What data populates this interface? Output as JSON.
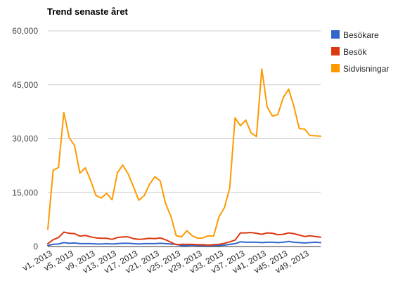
{
  "chart_data": {
    "type": "line",
    "title": "Trend senaste året",
    "xlabel": "",
    "ylabel": "",
    "ylim": [
      0,
      60000
    ],
    "yticks": [
      "0",
      "15,000",
      "30,000",
      "45,000",
      "60,000"
    ],
    "ytick_values": [
      0,
      15000,
      30000,
      45000,
      60000
    ],
    "grid": true,
    "legend_position": "right",
    "xtick_labels": [
      "v1, 2013",
      "v5, 2013",
      "v9, 2013",
      "v13, 2013",
      "v17, 2013",
      "v21, 2013",
      "v25, 2013",
      "v29, 2013",
      "v33, 2013",
      "v37, 2013",
      "v41, 2013",
      "v45, 2013",
      "v49, 2013"
    ],
    "xtick_weeks": [
      1,
      5,
      9,
      13,
      17,
      21,
      25,
      29,
      33,
      37,
      41,
      45,
      49
    ],
    "x": [
      1,
      2,
      3,
      4,
      5,
      6,
      7,
      8,
      9,
      10,
      11,
      12,
      13,
      14,
      15,
      16,
      17,
      18,
      19,
      20,
      21,
      22,
      23,
      24,
      25,
      26,
      27,
      28,
      29,
      30,
      31,
      32,
      33,
      34,
      35,
      36,
      37,
      38,
      39,
      40,
      41,
      42,
      43,
      44,
      45,
      46,
      47,
      48,
      49,
      50,
      51,
      52
    ],
    "series": [
      {
        "name": "Besökare",
        "color": "#3366cc",
        "values": [
          300,
          600,
          700,
          1100,
          900,
          1000,
          800,
          800,
          800,
          700,
          700,
          800,
          700,
          800,
          900,
          900,
          800,
          700,
          800,
          800,
          800,
          900,
          800,
          700,
          600,
          300,
          300,
          400,
          300,
          300,
          200,
          200,
          300,
          400,
          600,
          800,
          1300,
          1200,
          1200,
          1200,
          1100,
          1200,
          1200,
          1100,
          1200,
          1400,
          1200,
          1100,
          1000,
          1100,
          1200,
          1100
        ]
      },
      {
        "name": "Besök",
        "color": "#dc3912",
        "values": [
          800,
          1900,
          2500,
          4000,
          3700,
          3600,
          2900,
          3100,
          2700,
          2400,
          2300,
          2300,
          2000,
          2500,
          2700,
          2700,
          2200,
          2000,
          2100,
          2300,
          2200,
          2400,
          1900,
          1200,
          500,
          600,
          600,
          600,
          500,
          500,
          400,
          500,
          600,
          900,
          1300,
          1800,
          3800,
          3800,
          3900,
          3700,
          3400,
          3800,
          3700,
          3300,
          3400,
          3800,
          3600,
          3200,
          2800,
          3000,
          2800,
          2600
        ]
      },
      {
        "name": "Sidvisningar",
        "color": "#ff9900",
        "values": [
          4800,
          21200,
          22000,
          37300,
          30300,
          28100,
          20400,
          21900,
          18400,
          14200,
          13500,
          14800,
          13000,
          20500,
          22700,
          20300,
          16700,
          12900,
          14100,
          17300,
          19400,
          18300,
          12000,
          8400,
          3000,
          2700,
          4400,
          3000,
          2300,
          2400,
          3000,
          2900,
          8300,
          10800,
          16300,
          35800,
          33600,
          35200,
          31600,
          30600,
          49400,
          38900,
          36300,
          36700,
          41400,
          43800,
          39000,
          32800,
          32700,
          30900,
          30800,
          30700
        ]
      }
    ]
  }
}
